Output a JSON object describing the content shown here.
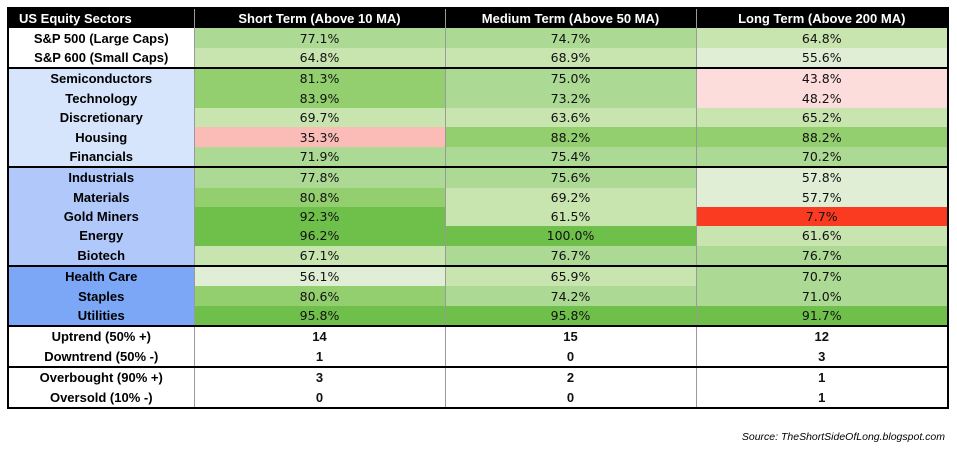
{
  "header": {
    "col0": "US Equity Sectors",
    "col1": "Short Term (Above 10 MA)",
    "col2": "Medium Term (Above 50 MA)",
    "col3": "Long Term (Above 200 MA)"
  },
  "rows": [
    {
      "label": "S&P 500 (Large Caps)",
      "short": "77.1%",
      "medium": "74.7%",
      "long": "64.8%"
    },
    {
      "label": "S&P 600 (Small Caps)",
      "short": "64.8%",
      "medium": "68.9%",
      "long": "55.6%"
    },
    {
      "label": "Semiconductors",
      "short": "81.3%",
      "medium": "75.0%",
      "long": "43.8%"
    },
    {
      "label": "Technology",
      "short": "83.9%",
      "medium": "73.2%",
      "long": "48.2%"
    },
    {
      "label": "Discretionary",
      "short": "69.7%",
      "medium": "63.6%",
      "long": "65.2%"
    },
    {
      "label": "Housing",
      "short": "35.3%",
      "medium": "88.2%",
      "long": "88.2%"
    },
    {
      "label": "Financials",
      "short": "71.9%",
      "medium": "75.4%",
      "long": "70.2%"
    },
    {
      "label": "Industrials",
      "short": "77.8%",
      "medium": "75.6%",
      "long": "57.8%"
    },
    {
      "label": "Materials",
      "short": "80.8%",
      "medium": "69.2%",
      "long": "57.7%"
    },
    {
      "label": "Gold Miners",
      "short": "92.3%",
      "medium": "61.5%",
      "long": "7.7%"
    },
    {
      "label": "Energy",
      "short": "96.2%",
      "medium": "100.0%",
      "long": "61.6%"
    },
    {
      "label": "Biotech",
      "short": "67.1%",
      "medium": "76.7%",
      "long": "76.7%"
    },
    {
      "label": "Health Care",
      "short": "56.1%",
      "medium": "65.9%",
      "long": "70.7%"
    },
    {
      "label": "Staples",
      "short": "80.6%",
      "medium": "74.2%",
      "long": "71.0%"
    },
    {
      "label": "Utilities",
      "short": "95.8%",
      "medium": "95.8%",
      "long": "91.7%"
    }
  ],
  "stats": [
    {
      "label": "Uptrend (50% +)",
      "short": "14",
      "medium": "15",
      "long": "12"
    },
    {
      "label": "Downtrend (50% -)",
      "short": "1",
      "medium": "0",
      "long": "3"
    },
    {
      "label": "Overbought (90% +)",
      "short": "3",
      "medium": "2",
      "long": "1"
    },
    {
      "label": "Oversold (10% -)",
      "short": "0",
      "medium": "0",
      "long": "1"
    }
  ],
  "label_colors": {
    "index": "#ffffff",
    "group1": "#d6e4fc",
    "group2": "#b1c9fa",
    "group3": "#7ba7f6"
  },
  "cell_colors": {
    "red_strong": "#fa3b21",
    "red_light": "#fbbcb8",
    "red_pale": "#fddcdc",
    "green_very_pale": "#e0eed5",
    "green_pale": "#c8e5b0",
    "green_light": "#acd993",
    "green_mid": "#93cf6f",
    "green_strong": "#6ec04a"
  },
  "source": "Source: TheShortSideOfLong.blogspot.com"
}
